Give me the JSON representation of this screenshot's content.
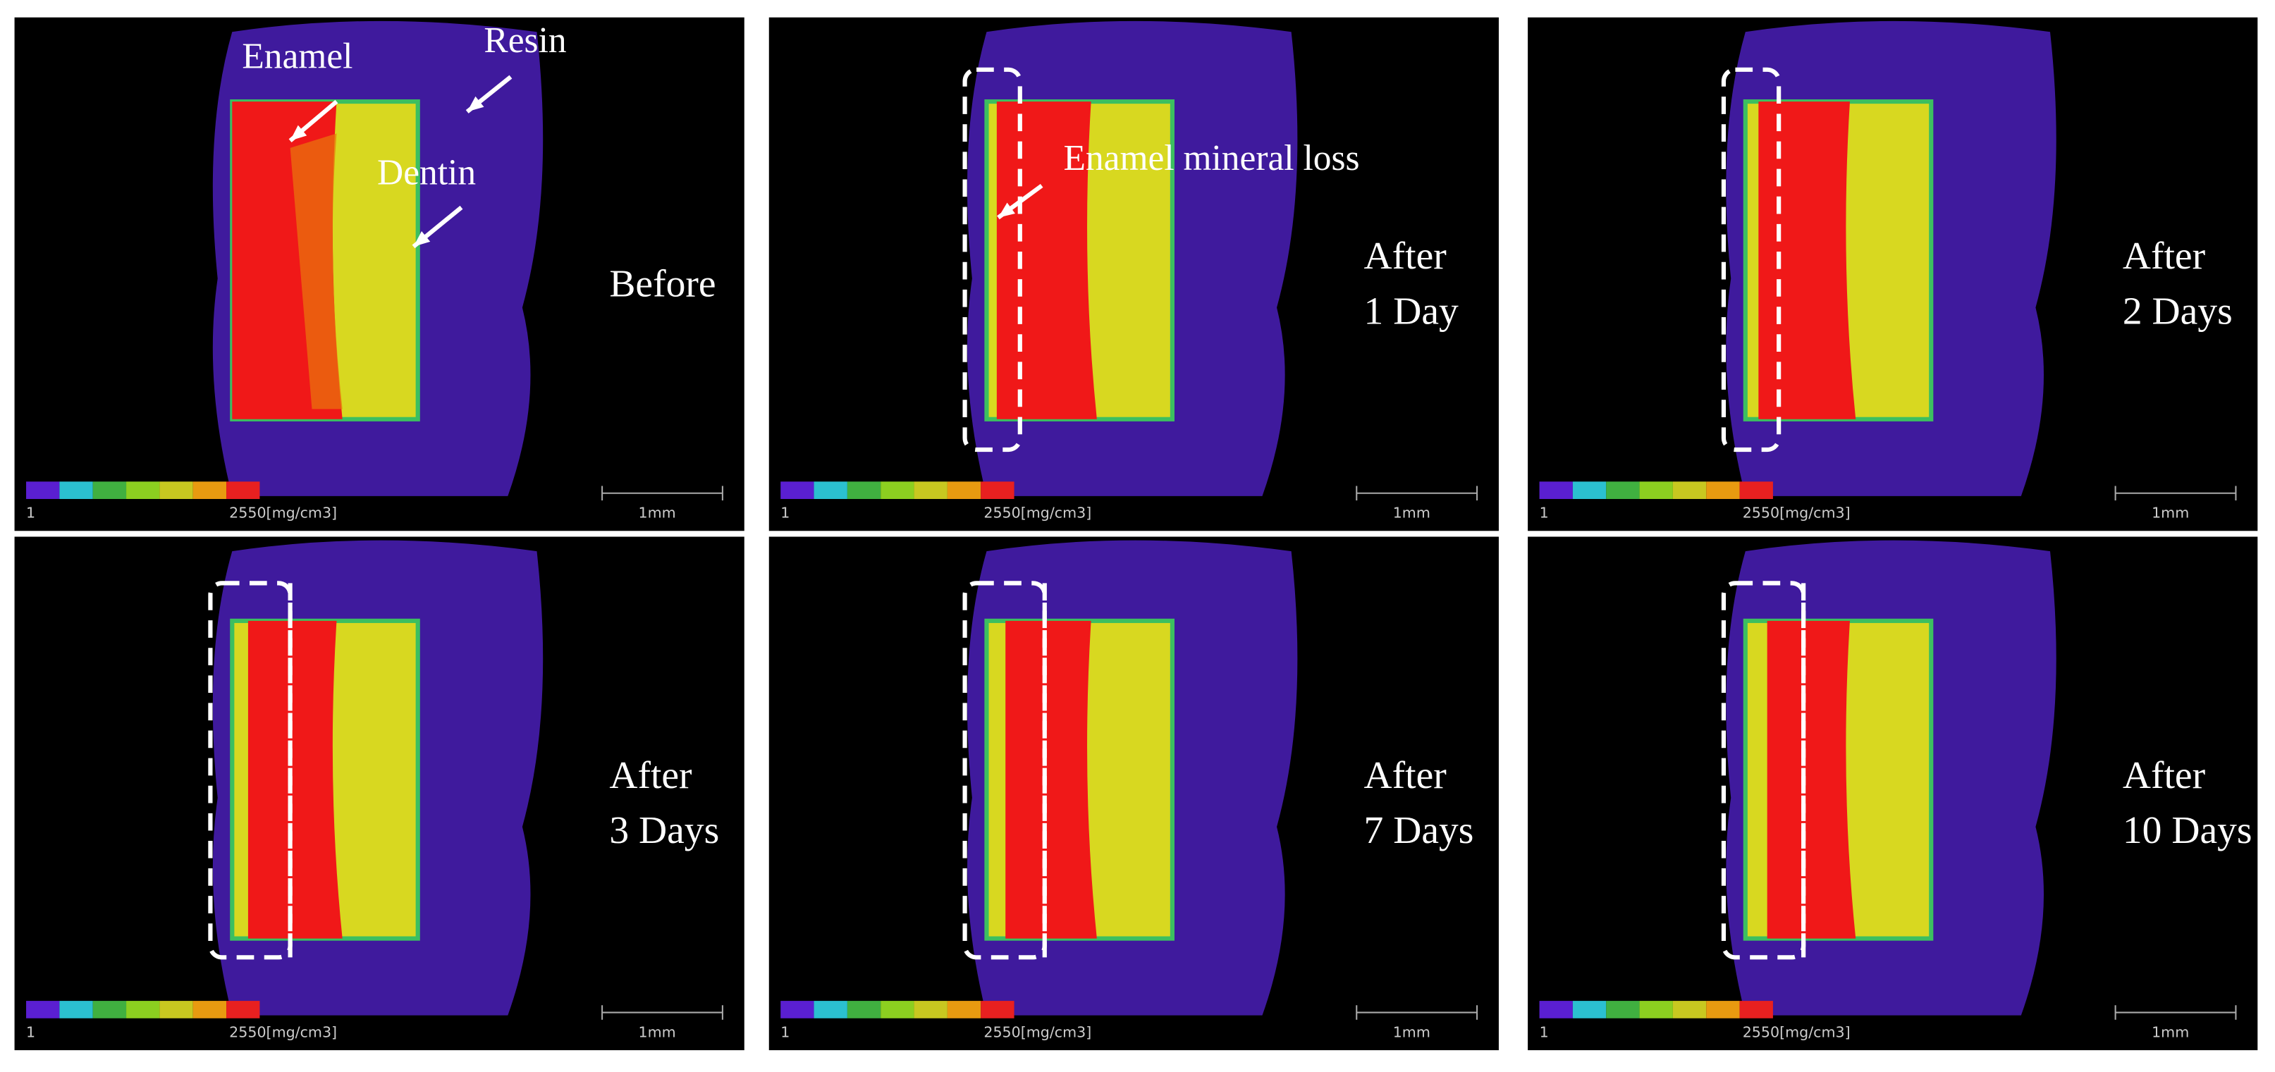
{
  "panels": [
    {
      "label": [
        "Before"
      ],
      "annotations": [
        "Enamel",
        "Resin",
        "Dentin"
      ],
      "colorbar": {
        "min": "1",
        "max": "2550[mg/cm3]"
      },
      "scale_bar": "1mm"
    },
    {
      "label": [
        "After",
        "1 Day"
      ],
      "annotations": [
        "Enamel mineral loss"
      ],
      "colorbar": {
        "min": "1",
        "max": "2550[mg/cm3]"
      },
      "scale_bar": "1mm"
    },
    {
      "label": [
        "After",
        "2 Days"
      ],
      "annotations": [],
      "colorbar": {
        "min": "1",
        "max": "2550[mg/cm3]"
      },
      "scale_bar": "1mm"
    },
    {
      "label": [
        "After",
        "3 Days"
      ],
      "annotations": [],
      "colorbar": {
        "min": "1",
        "max": "2550[mg/cm3]"
      },
      "scale_bar": "1mm"
    },
    {
      "label": [
        "After",
        "7 Days"
      ],
      "annotations": [],
      "colorbar": {
        "min": "1",
        "max": "2550[mg/cm3]"
      },
      "scale_bar": "1mm"
    },
    {
      "label": [
        "After",
        "10 Days"
      ],
      "annotations": [],
      "colorbar": {
        "min": "1",
        "max": "2550[mg/cm3]"
      },
      "scale_bar": "1mm"
    }
  ]
}
